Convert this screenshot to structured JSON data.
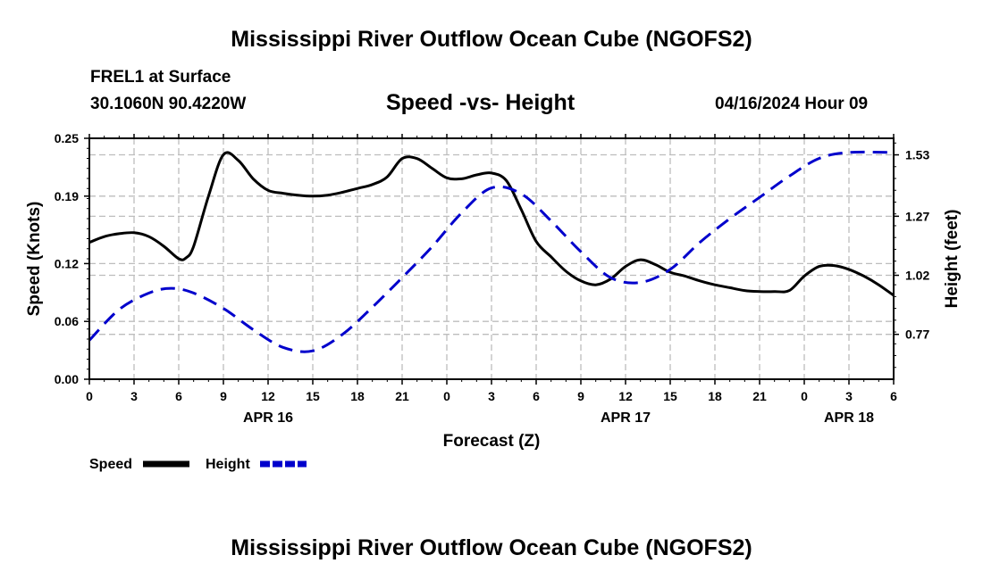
{
  "title": "Mississippi River Outflow Ocean Cube (NGOFS2)",
  "footer_title": "Mississippi River Outflow Ocean Cube (NGOFS2)",
  "station": "FREL1 at Surface",
  "coords": "30.1060N  90.4220W",
  "subtitle": "Speed -vs- Height",
  "datetime": "04/16/2024 Hour 09",
  "chart_data": {
    "type": "line",
    "title": "Speed -vs- Height",
    "xlabel": "Forecast (Z)",
    "ylabel": "Speed (Knots)",
    "y2label": "Height (feet)",
    "x_range_hours": [
      0,
      54
    ],
    "ylim": [
      0,
      0.25
    ],
    "y2lim": [
      0.58,
      1.6
    ],
    "x_tick_hours": [
      0,
      3,
      6,
      9,
      12,
      15,
      18,
      21,
      24,
      27,
      30,
      33,
      36,
      39,
      42,
      45,
      48,
      51,
      54
    ],
    "x_tick_labels": [
      "0",
      "3",
      "6",
      "9",
      "12",
      "15",
      "18",
      "21",
      "0",
      "3",
      "6",
      "9",
      "12",
      "15",
      "18",
      "21",
      "0",
      "3",
      "6"
    ],
    "day_labels": [
      {
        "hour": 12,
        "label": "APR 16"
      },
      {
        "hour": 36,
        "label": "APR 17"
      },
      {
        "hour": 51,
        "label": "APR 18"
      }
    ],
    "y_ticks": [
      0.0,
      0.06,
      0.12,
      0.19,
      0.25
    ],
    "y_tick_labels": [
      "0.00",
      "0.06",
      "0.12",
      "0.19",
      "0.25"
    ],
    "y2_ticks": [
      0.77,
      1.02,
      1.27,
      1.53
    ],
    "y2_tick_labels": [
      "0.77",
      "1.02",
      "1.27",
      "1.53"
    ],
    "grid": true,
    "series": [
      {
        "name": "Speed",
        "axis": "left",
        "color": "#000000",
        "dash": "solid",
        "x": [
          0,
          1,
          2,
          3,
          4,
          5,
          6,
          6.5,
          7,
          8,
          9,
          10,
          11,
          12,
          13,
          14,
          15,
          16,
          17,
          18,
          19,
          20,
          21,
          22,
          23,
          24,
          25,
          26,
          27,
          28,
          29,
          30,
          31,
          32,
          33,
          34,
          35,
          36,
          37,
          38,
          39,
          40,
          41,
          42,
          43,
          44,
          45,
          46,
          47,
          48,
          49,
          50,
          51,
          52,
          53,
          54
        ],
        "values": [
          0.142,
          0.148,
          0.151,
          0.152,
          0.148,
          0.138,
          0.125,
          0.126,
          0.138,
          0.19,
          0.233,
          0.227,
          0.208,
          0.196,
          0.193,
          0.191,
          0.19,
          0.191,
          0.194,
          0.198,
          0.202,
          0.21,
          0.229,
          0.229,
          0.219,
          0.209,
          0.208,
          0.212,
          0.214,
          0.206,
          0.176,
          0.143,
          0.127,
          0.112,
          0.102,
          0.098,
          0.104,
          0.117,
          0.124,
          0.119,
          0.111,
          0.107,
          0.102,
          0.098,
          0.095,
          0.092,
          0.091,
          0.091,
          0.092,
          0.107,
          0.117,
          0.118,
          0.114,
          0.107,
          0.098,
          0.087
        ]
      },
      {
        "name": "Height",
        "axis": "right",
        "color": "#0000cc",
        "dash": "dashed",
        "x": [
          0,
          2,
          4,
          5.5,
          7,
          9,
          11,
          13,
          15,
          17,
          19,
          21,
          23,
          25,
          27,
          29,
          31,
          33,
          35,
          37,
          39,
          41,
          43,
          45,
          47,
          49,
          51,
          54
        ],
        "values": [
          0.745,
          0.875,
          0.945,
          0.965,
          0.945,
          0.88,
          0.79,
          0.715,
          0.7,
          0.77,
          0.885,
          1.01,
          1.14,
          1.285,
          1.39,
          1.365,
          1.25,
          1.12,
          1.01,
          0.99,
          1.045,
          1.16,
          1.26,
          1.35,
          1.44,
          1.515,
          1.54,
          1.54
        ]
      }
    ],
    "legend": [
      {
        "label": "Speed",
        "color": "#000000",
        "dash": "solid"
      },
      {
        "label": "Height",
        "color": "#0000cc",
        "dash": "dashed"
      }
    ]
  }
}
